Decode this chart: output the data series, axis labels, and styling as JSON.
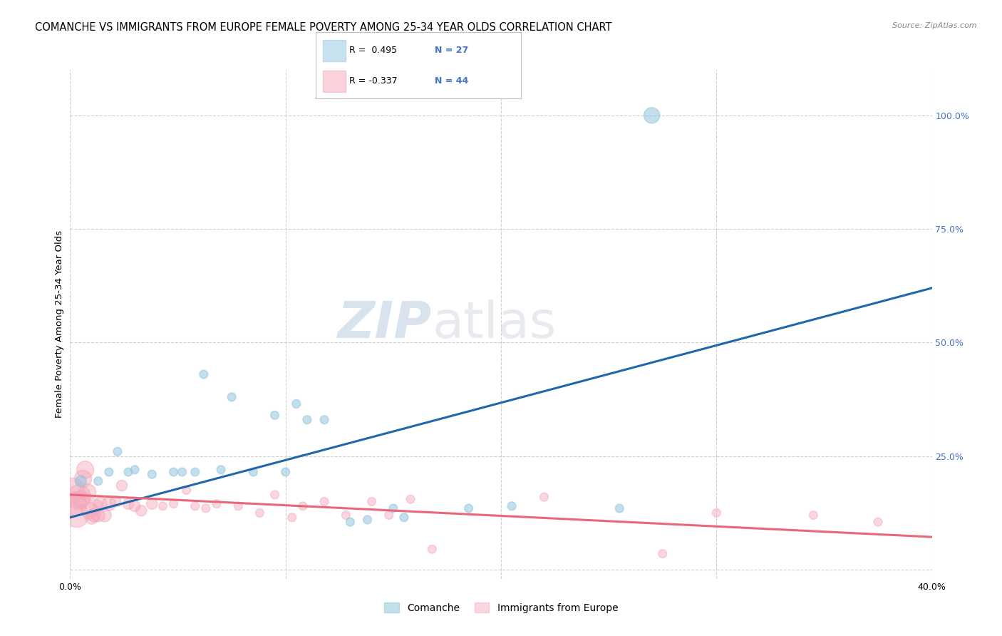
{
  "title": "COMANCHE VS IMMIGRANTS FROM EUROPE FEMALE POVERTY AMONG 25-34 YEAR OLDS CORRELATION CHART",
  "source": "Source: ZipAtlas.com",
  "ylabel": "Female Poverty Among 25-34 Year Olds",
  "xlim": [
    0.0,
    0.4
  ],
  "ylim": [
    -0.02,
    1.1
  ],
  "xticks": [
    0.0,
    0.1,
    0.2,
    0.3,
    0.4
  ],
  "xticklabels": [
    "0.0%",
    "",
    "",
    "",
    "40.0%"
  ],
  "yticks_right": [
    0.0,
    0.25,
    0.5,
    0.75,
    1.0
  ],
  "yticklabels_right": [
    "",
    "25.0%",
    "50.0%",
    "75.0%",
    "100.0%"
  ],
  "blue_color": "#92c5de",
  "pink_color": "#f4a6b8",
  "blue_line_color": "#2166ac",
  "pink_line_color": "#e8687a",
  "legend_R_blue": "R =  0.495",
  "legend_N_blue": "N = 27",
  "legend_R_pink": "R = -0.337",
  "legend_N_pink": "N = 44",
  "legend_label_blue": "Comanche",
  "legend_label_pink": "Immigrants from Europe",
  "watermark_zip": "ZIP",
  "watermark_atlas": "atlas",
  "blue_scatter_x": [
    0.005,
    0.018,
    0.013,
    0.022,
    0.027,
    0.03,
    0.038,
    0.048,
    0.052,
    0.058,
    0.062,
    0.07,
    0.075,
    0.085,
    0.095,
    0.1,
    0.105,
    0.11,
    0.118,
    0.13,
    0.138,
    0.15,
    0.155,
    0.185,
    0.205,
    0.255,
    0.27
  ],
  "blue_scatter_y": [
    0.195,
    0.215,
    0.195,
    0.26,
    0.215,
    0.22,
    0.21,
    0.215,
    0.215,
    0.215,
    0.43,
    0.22,
    0.38,
    0.215,
    0.34,
    0.215,
    0.365,
    0.33,
    0.33,
    0.105,
    0.11,
    0.135,
    0.115,
    0.135,
    0.14,
    0.135,
    1.0
  ],
  "pink_scatter_x": [
    0.001,
    0.002,
    0.003,
    0.004,
    0.005,
    0.006,
    0.007,
    0.008,
    0.009,
    0.01,
    0.011,
    0.012,
    0.013,
    0.014,
    0.016,
    0.018,
    0.021,
    0.024,
    0.027,
    0.03,
    0.033,
    0.038,
    0.043,
    0.048,
    0.054,
    0.058,
    0.063,
    0.068,
    0.078,
    0.088,
    0.095,
    0.103,
    0.108,
    0.118,
    0.128,
    0.14,
    0.148,
    0.158,
    0.168,
    0.22,
    0.275,
    0.3,
    0.345,
    0.375
  ],
  "pink_scatter_y": [
    0.175,
    0.145,
    0.12,
    0.16,
    0.155,
    0.2,
    0.22,
    0.17,
    0.13,
    0.115,
    0.12,
    0.14,
    0.12,
    0.145,
    0.12,
    0.145,
    0.15,
    0.185,
    0.145,
    0.14,
    0.13,
    0.145,
    0.14,
    0.145,
    0.175,
    0.14,
    0.135,
    0.145,
    0.14,
    0.125,
    0.165,
    0.115,
    0.14,
    0.15,
    0.12,
    0.15,
    0.12,
    0.155,
    0.045,
    0.16,
    0.035,
    0.125,
    0.12,
    0.105
  ],
  "blue_trend_x": [
    0.0,
    0.4
  ],
  "blue_trend_y": [
    0.115,
    0.62
  ],
  "pink_trend_x": [
    0.0,
    0.4
  ],
  "pink_trend_y": [
    0.165,
    0.072
  ],
  "grid_color": "#d0d0d0",
  "background_color": "#ffffff",
  "title_fontsize": 10.5,
  "axis_label_fontsize": 9.5,
  "tick_fontsize": 9,
  "right_tick_color": "#4472c4",
  "scatter_base_size": 55
}
